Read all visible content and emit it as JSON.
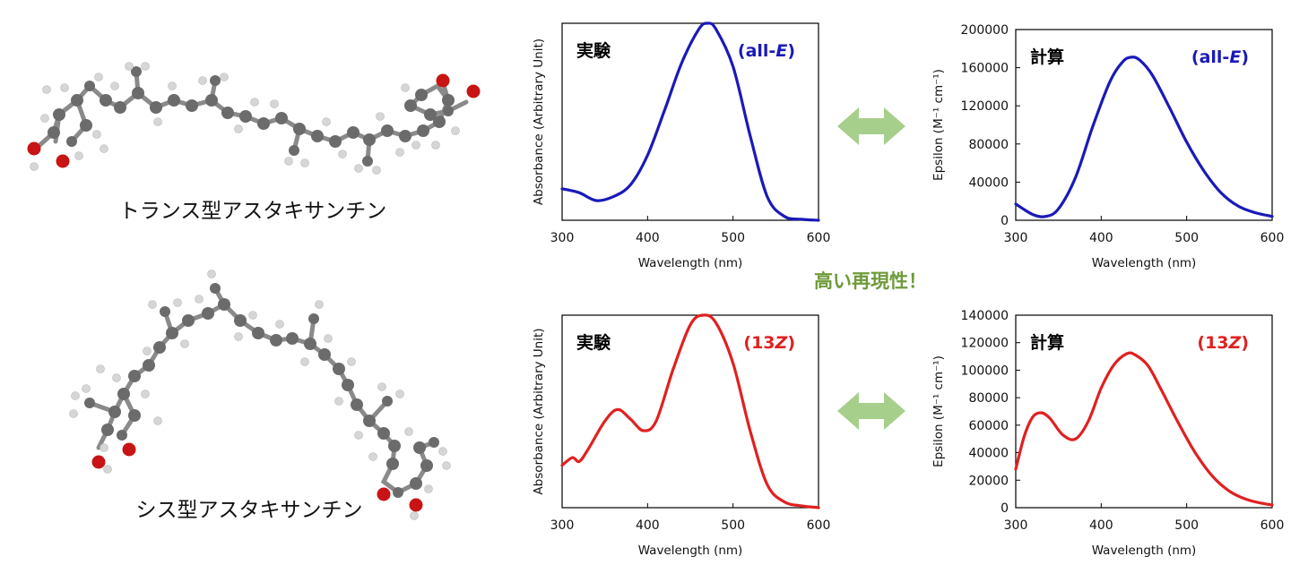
{
  "molecules": [
    {
      "caption": "トランス型アスタキサンチン",
      "name": "trans"
    },
    {
      "caption": "シス型アスタキサンチン",
      "name": "cis"
    }
  ],
  "callout": {
    "text": "高い再現性！",
    "color": "#6e9b3a"
  },
  "arrow_color": "#a7cf8c",
  "chart_data": [
    {
      "id": "exp-allE",
      "type": "line",
      "corner_title": "実験",
      "series_label": "(all-E)",
      "series_color": "#1a1ab8",
      "xlabel": "Wavelength (nm)",
      "ylabel": "Absorbance (Arbitrary Unit)",
      "xlim": [
        300,
        600
      ],
      "ylim": [
        0,
        1
      ],
      "xticks": [
        300,
        400,
        500,
        600
      ],
      "yticks": [],
      "ytick_labels": [],
      "x": [
        300,
        320,
        340,
        360,
        380,
        400,
        420,
        440,
        460,
        470,
        480,
        500,
        520,
        540,
        560,
        580,
        600
      ],
      "y": [
        0.16,
        0.14,
        0.1,
        0.12,
        0.18,
        0.33,
        0.56,
        0.8,
        0.97,
        1.0,
        0.97,
        0.78,
        0.43,
        0.12,
        0.02,
        0.005,
        0.0
      ]
    },
    {
      "id": "calc-allE",
      "type": "line",
      "corner_title": "計算",
      "series_label": "(all-E)",
      "series_color": "#1a1ab8",
      "xlabel": "Wavelength (nm)",
      "ylabel": "Epsilon (M⁻¹ cm⁻¹)",
      "xlim": [
        300,
        600
      ],
      "ylim": [
        0,
        200000
      ],
      "xticks": [
        300,
        400,
        500,
        600
      ],
      "yticks": [
        0,
        40000,
        80000,
        120000,
        160000,
        200000
      ],
      "ytick_labels": [
        "0",
        "40000",
        "80000",
        "120000",
        "160000",
        "200000"
      ],
      "x": [
        300,
        320,
        335,
        350,
        370,
        390,
        410,
        425,
        435,
        445,
        460,
        480,
        500,
        520,
        540,
        560,
        580,
        600
      ],
      "y": [
        17000,
        6000,
        4000,
        12000,
        45000,
        98000,
        145000,
        166000,
        171000,
        168000,
        152000,
        118000,
        82000,
        52000,
        29000,
        15000,
        8000,
        4000
      ]
    },
    {
      "id": "exp-13Z",
      "type": "line",
      "corner_title": "実験",
      "series_label": "(13Z)",
      "series_color": "#e02020",
      "xlabel": "Wavelength (nm)",
      "ylabel": "Absorbance (Arbitrary Unit)",
      "xlim": [
        300,
        600
      ],
      "ylim": [
        0,
        1
      ],
      "xticks": [
        300,
        400,
        500,
        600
      ],
      "yticks": [],
      "ytick_labels": [],
      "x": [
        300,
        312,
        320,
        330,
        350,
        365,
        380,
        395,
        410,
        430,
        450,
        465,
        480,
        500,
        520,
        540,
        560,
        580,
        600
      ],
      "y": [
        0.22,
        0.26,
        0.24,
        0.3,
        0.45,
        0.51,
        0.46,
        0.4,
        0.45,
        0.72,
        0.95,
        1.0,
        0.96,
        0.75,
        0.4,
        0.12,
        0.03,
        0.01,
        0.0
      ]
    },
    {
      "id": "calc-13Z",
      "type": "line",
      "corner_title": "計算",
      "series_label": "(13Z)",
      "series_color": "#e02020",
      "xlabel": "Wavelength (nm)",
      "ylabel": "Epsilon (M⁻¹ cm⁻¹)",
      "xlim": [
        300,
        600
      ],
      "ylim": [
        0,
        140000
      ],
      "xticks": [
        300,
        400,
        500,
        600
      ],
      "yticks": [
        0,
        20000,
        40000,
        60000,
        80000,
        100000,
        120000,
        140000
      ],
      "ytick_labels": [
        "0",
        "20000",
        "40000",
        "60000",
        "80000",
        "100000",
        "120000",
        "140000"
      ],
      "x": [
        300,
        310,
        320,
        330,
        340,
        355,
        370,
        385,
        400,
        415,
        430,
        440,
        455,
        470,
        490,
        510,
        530,
        550,
        570,
        590,
        600
      ],
      "y": [
        28000,
        52000,
        66000,
        69000,
        65000,
        53000,
        50000,
        63000,
        87000,
        104000,
        112000,
        111000,
        103000,
        86000,
        62000,
        40000,
        23000,
        12000,
        6000,
        3000,
        2000
      ]
    }
  ]
}
